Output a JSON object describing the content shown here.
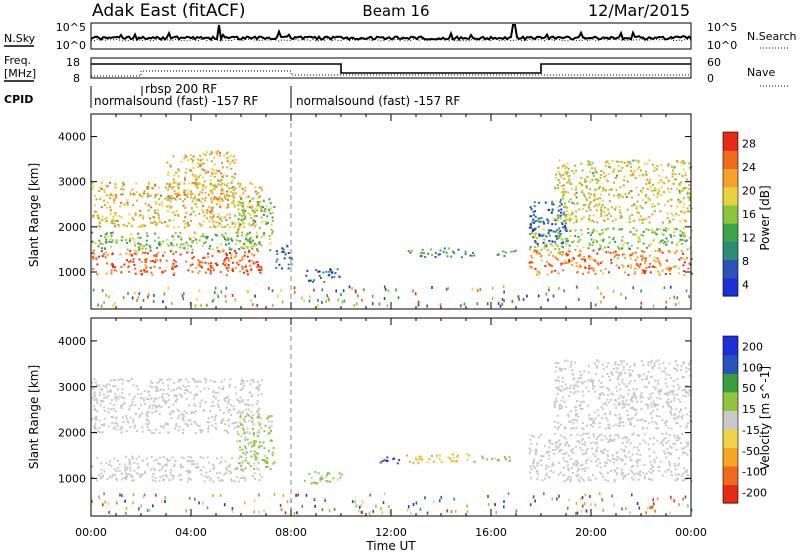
{
  "header": {
    "station": "Adak East (fitACF)",
    "beam": "Beam 16",
    "date": "12/Mar/2015"
  },
  "panels": {
    "nsky": {
      "label": "N.Sky",
      "right_label": "N.Search",
      "ticks_left": [
        "10^5",
        "10^0"
      ],
      "ticks_right": [
        "10^5",
        "10^0"
      ]
    },
    "freq": {
      "label_line1": "Freq.",
      "label_line2": "[MHz]",
      "ticks_left": [
        "18",
        "8"
      ],
      "ticks_right": [
        "60",
        "0"
      ],
      "right_label": "Nave"
    },
    "cpid": {
      "label": "CPID",
      "segments": [
        {
          "text": "normalsound (fast) -157 RF"
        },
        {
          "text": "rbsp 200 RF"
        },
        {
          "text": "normalsound (fast) -157 RF"
        }
      ]
    }
  },
  "colors": {
    "power_scale": [
      "#1f2fd6",
      "#2a52b8",
      "#2e8b76",
      "#3fa34a",
      "#8dc43e",
      "#e9d23c",
      "#f3a32a",
      "#ef6a1f",
      "#e52a16"
    ],
    "velocity_scale": [
      "#e52a16",
      "#ef6a1f",
      "#f5a623",
      "#f2d24a",
      "#c9c9c9",
      "#8ec63f",
      "#3a9d3e",
      "#2a52b8",
      "#1f2fd6"
    ]
  },
  "chart_data": [
    {
      "type": "heatmap",
      "title": "",
      "ylabel": "Slant Range [km]",
      "xlabel": "",
      "x_range_ut_hours": [
        0,
        24
      ],
      "ylim": [
        180,
        4500
      ],
      "yticks": [
        "1000",
        "2000",
        "3000",
        "4000"
      ],
      "colorbar": {
        "label": "Power [dB]",
        "ticks": [
          "28",
          "24",
          "20",
          "16",
          "12",
          "8",
          "4"
        ],
        "range": [
          0,
          30
        ]
      },
      "regions": [
        {
          "ut": [
            0.0,
            6.8
          ],
          "range_km": [
            950,
            1500
          ],
          "value_db": 26
        },
        {
          "ut": [
            0.0,
            6.8
          ],
          "range_km": [
            1500,
            1900
          ],
          "value_db": 14
        },
        {
          "ut": [
            0.0,
            6.8
          ],
          "range_km": [
            2000,
            3000
          ],
          "value_db": 20
        },
        {
          "ut": [
            3.0,
            5.8
          ],
          "range_km": [
            2600,
            3700
          ],
          "value_db": 20
        },
        {
          "ut": [
            5.8,
            7.3
          ],
          "range_km": [
            1500,
            2700
          ],
          "value_db": 14
        },
        {
          "ut": [
            7.3,
            8.0
          ],
          "range_km": [
            1100,
            1600
          ],
          "value_db": 6
        },
        {
          "ut": [
            8.5,
            10.0
          ],
          "range_km": [
            800,
            1100
          ],
          "value_db": 5
        },
        {
          "ut": [
            12.6,
            15.3
          ],
          "range_km": [
            1350,
            1550
          ],
          "value_db": 10
        },
        {
          "ut": [
            16.0,
            17.0
          ],
          "range_km": [
            1350,
            1500
          ],
          "value_db": 10
        },
        {
          "ut": [
            17.5,
            24.0
          ],
          "range_km": [
            950,
            1500
          ],
          "value_db": 24
        },
        {
          "ut": [
            17.5,
            24.0
          ],
          "range_km": [
            1500,
            2000
          ],
          "value_db": 14
        },
        {
          "ut": [
            17.5,
            19.0
          ],
          "range_km": [
            1600,
            2600
          ],
          "value_db": 5
        },
        {
          "ut": [
            18.5,
            24.0
          ],
          "range_km": [
            2100,
            3500
          ],
          "value_db": 18
        }
      ]
    },
    {
      "type": "heatmap",
      "title": "",
      "ylabel": "Slant Range [km]",
      "xlabel": "Time UT",
      "x_range_ut_hours": [
        0,
        24
      ],
      "xticks": [
        "00:00",
        "04:00",
        "08:00",
        "12:00",
        "16:00",
        "20:00",
        "00:00"
      ],
      "ylim": [
        180,
        4500
      ],
      "yticks": [
        "1000",
        "2000",
        "3000",
        "4000"
      ],
      "colorbar": {
        "label": "Velocity [m s^-1]",
        "ticks": [
          "200",
          "100",
          "50",
          "15",
          "-15",
          "-50",
          "-100",
          "-200"
        ],
        "range": [
          -250,
          250
        ]
      },
      "regions": [
        {
          "ut": [
            0.0,
            6.8
          ],
          "range_km": [
            950,
            1500
          ],
          "value_ms": 0
        },
        {
          "ut": [
            0.0,
            6.8
          ],
          "range_km": [
            2000,
            3200
          ],
          "value_ms": 0
        },
        {
          "ut": [
            5.8,
            7.3
          ],
          "range_km": [
            1200,
            2400
          ],
          "value_ms": 40
        },
        {
          "ut": [
            8.5,
            10.0
          ],
          "range_km": [
            900,
            1200
          ],
          "value_ms": 40
        },
        {
          "ut": [
            11.5,
            12.3
          ],
          "range_km": [
            1300,
            1500
          ],
          "value_ms": 200
        },
        {
          "ut": [
            12.6,
            15.3
          ],
          "range_km": [
            1350,
            1550
          ],
          "value_ms": -80
        },
        {
          "ut": [
            15.3,
            17.0
          ],
          "range_km": [
            1350,
            1500
          ],
          "value_ms": 40
        },
        {
          "ut": [
            17.5,
            24.0
          ],
          "range_km": [
            950,
            2000
          ],
          "value_ms": 0
        },
        {
          "ut": [
            18.5,
            24.0
          ],
          "range_km": [
            2100,
            3600
          ],
          "value_ms": 0
        }
      ]
    }
  ]
}
